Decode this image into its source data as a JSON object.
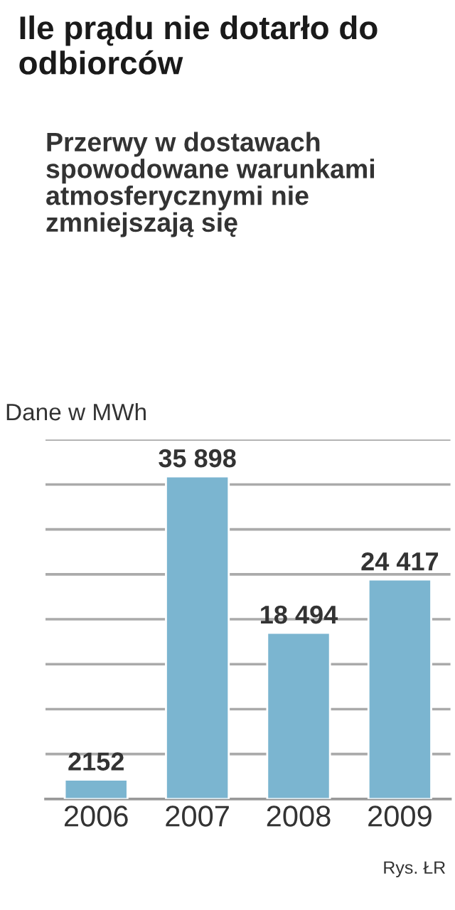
{
  "chart_data": {
    "type": "bar",
    "title": "Ile prądu nie dotarło do odbiorców",
    "subtitle": "Przerwy w dostawach spowodowane warunkami atmosferycznymi nie zmniejszają się",
    "ylabel": "Dane w MWh",
    "categories": [
      "2006",
      "2007",
      "2008",
      "2009"
    ],
    "values": [
      2152,
      35898,
      18494,
      24417
    ],
    "value_labels": [
      "2152",
      "35 898",
      "18 494",
      "24 417"
    ],
    "color": "#7bb5d0",
    "ylim": [
      0,
      40000
    ],
    "yticks": [
      {
        "value": 5000,
        "label": null
      },
      {
        "value": 10000,
        "label": null
      },
      {
        "value": 15000,
        "label": null
      },
      {
        "value": 20000,
        "label": null
      },
      {
        "value": 25000,
        "label": null
      },
      {
        "value": 30000,
        "label": null
      },
      {
        "value": 35000,
        "label": null
      },
      {
        "value": 40000,
        "label": null
      }
    ],
    "grid": "y",
    "tick_labels": "x",
    "annotations": [
      "Rys. ŁR"
    ]
  }
}
